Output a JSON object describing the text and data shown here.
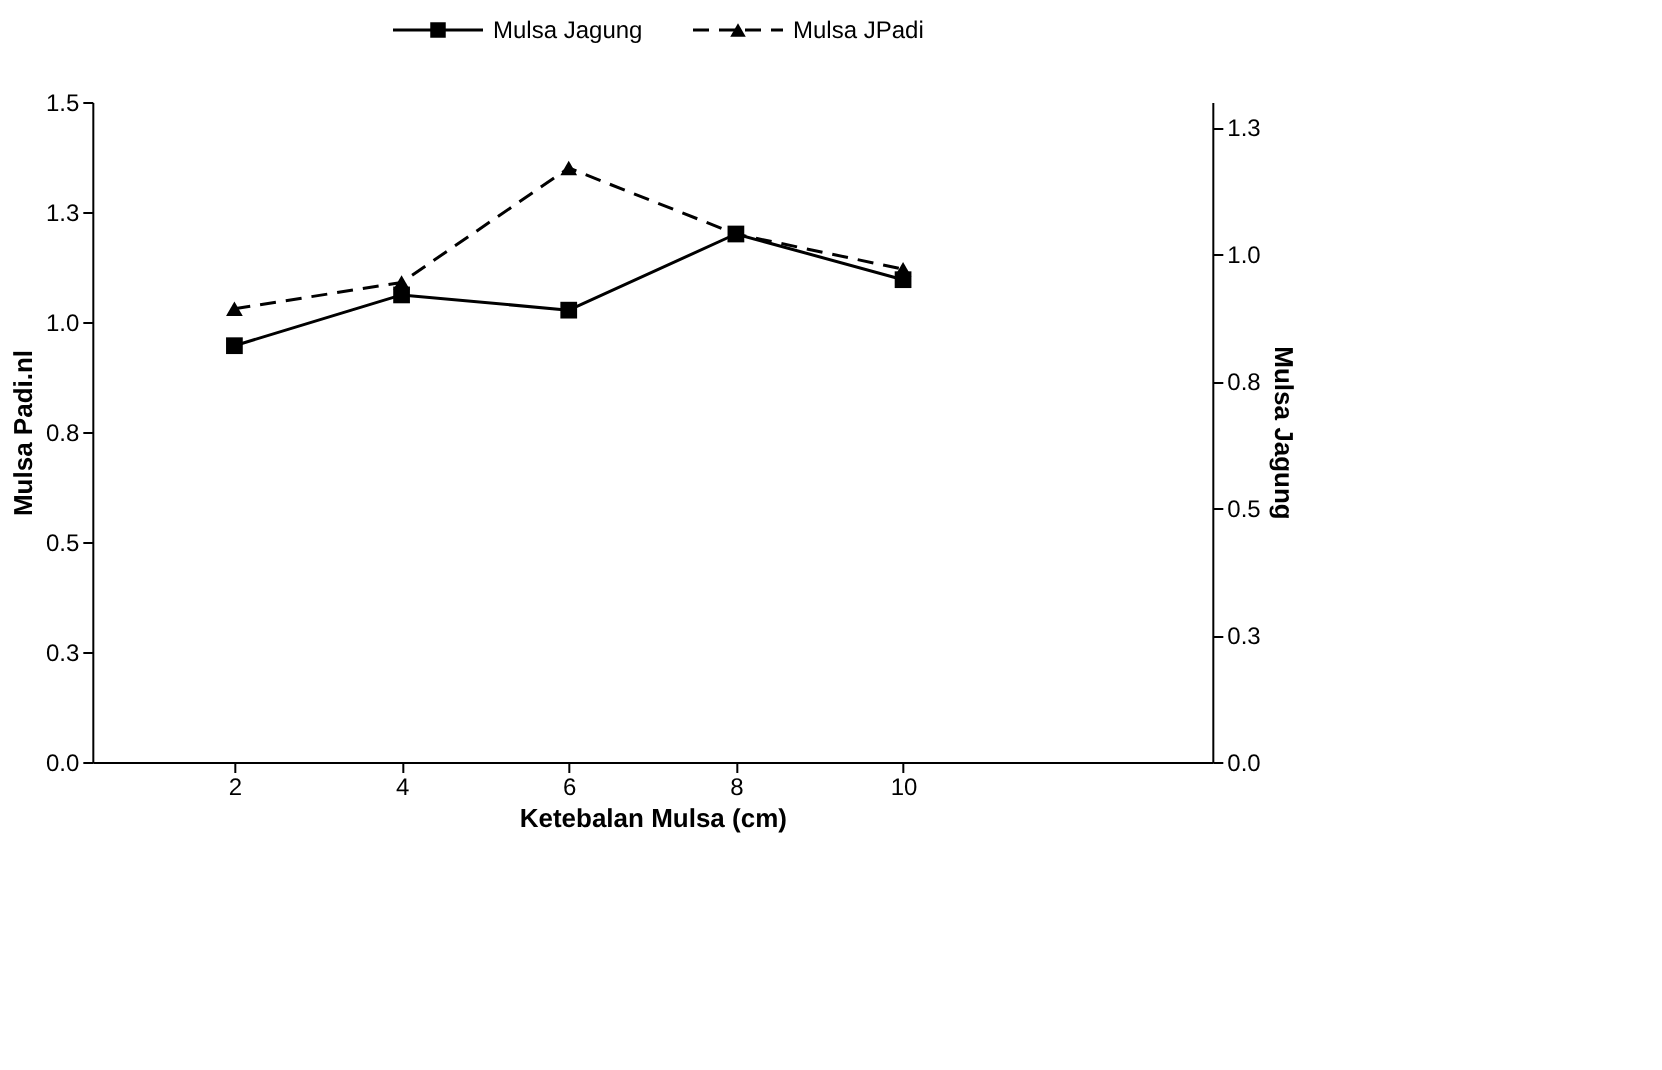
{
  "chart_data": {
    "type": "line",
    "xlabel": "Ketebalan Mulsa (cm)",
    "ylabel": "Mulsa Padi.nl",
    "y2label": "Mulsa Jagung",
    "x": [
      2,
      4,
      6,
      8,
      10
    ],
    "xlim": [
      0.3,
      13.7
    ],
    "xticks": [
      2,
      4,
      6,
      8,
      10
    ],
    "ylim": [
      0,
      1.5
    ],
    "yticks": [
      {
        "value": 0,
        "label": "0.0"
      },
      {
        "value": 0.25,
        "label": "0.3"
      },
      {
        "value": 0.5,
        "label": "0.5"
      },
      {
        "value": 0.75,
        "label": "0.8"
      },
      {
        "value": 1.0,
        "label": "1.0"
      },
      {
        "value": 1.25,
        "label": "1.3"
      },
      {
        "value": 1.5,
        "label": "1.5"
      }
    ],
    "y2lim": [
      0,
      1.3
    ],
    "y2ticks": [
      {
        "value": 0,
        "label": "0.0"
      },
      {
        "value": 0.25,
        "label": "0.3"
      },
      {
        "value": 0.5,
        "label": "0.5"
      },
      {
        "value": 0.75,
        "label": "0.8"
      },
      {
        "value": 1.0,
        "label": "1.0"
      },
      {
        "value": 1.25,
        "label": "1.3"
      }
    ],
    "grid": false,
    "legend": "top",
    "series": [
      {
        "name": "Mulsa Jagung",
        "color": "#000000",
        "axis": "y2",
        "marker": "square",
        "line_style": "solid",
        "values": [
          0.82,
          0.92,
          0.89,
          1.04,
          0.95
        ]
      },
      {
        "name": "Mulsa JPadi",
        "color": "#000000",
        "axis": "y",
        "marker": "triangle",
        "line_style": "dashed",
        "values": [
          1.03,
          1.09,
          1.35,
          1.2,
          1.12
        ]
      }
    ]
  }
}
